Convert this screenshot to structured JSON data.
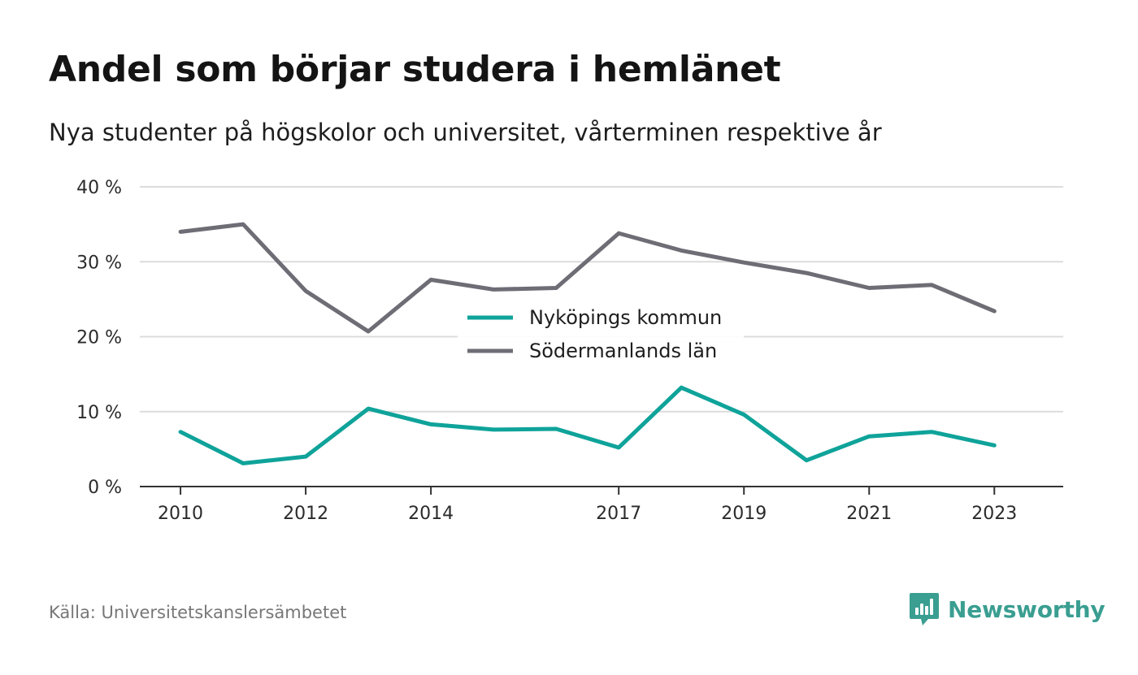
{
  "colors": {
    "series_teal": "#0fa39a",
    "series_gray": "#6e6d75",
    "grid": "#dcdcdc",
    "axis": "#333333",
    "brand": "#3a9e91"
  },
  "footer": {
    "source": "Källa: Universitetskanslersämbetet",
    "brand": "Newsworthy",
    "brand_icon": "newsworthy-logo-icon"
  },
  "chart_data": {
    "type": "line",
    "title": "Andel som börjar studera i hemlänet",
    "subtitle": "Nya studenter på högskolor och universitet, vårterminen respektive år",
    "xlabel": "",
    "ylabel": "",
    "x": [
      2010,
      2011,
      2012,
      2013,
      2014,
      2015,
      2016,
      2017,
      2018,
      2019,
      2020,
      2021,
      2022,
      2023
    ],
    "x_ticks": [
      2010,
      2012,
      2014,
      2017,
      2019,
      2021,
      2023
    ],
    "x_range": [
      2009.35,
      2024.1
    ],
    "ylim": [
      0,
      40
    ],
    "y_ticks": [
      0,
      10,
      20,
      30,
      40
    ],
    "y_tick_labels": [
      "0 %",
      "10 %",
      "20 %",
      "30 %",
      "40 %"
    ],
    "grid": true,
    "legend_position": "center",
    "series": [
      {
        "name": "Nyköpings kommun",
        "color": "#0fa39a",
        "values": [
          7.3,
          3.1,
          4.0,
          10.4,
          8.3,
          7.6,
          7.7,
          5.2,
          13.2,
          9.6,
          3.5,
          6.7,
          7.3,
          5.5
        ]
      },
      {
        "name": "Södermanlands län",
        "color": "#6e6d75",
        "values": [
          34.0,
          35.0,
          26.1,
          20.7,
          27.6,
          26.3,
          26.5,
          33.8,
          31.5,
          29.9,
          28.5,
          26.5,
          26.9,
          23.4
        ]
      }
    ]
  }
}
